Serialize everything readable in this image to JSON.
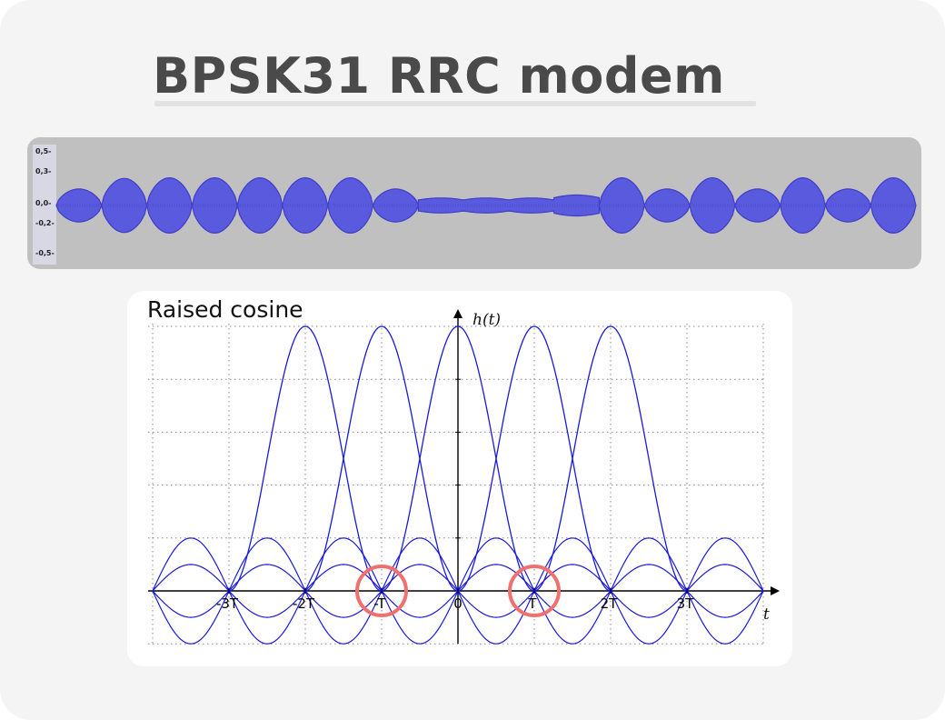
{
  "slide": {
    "title": "BPSK31 RRC modem"
  },
  "waveform": {
    "y_tick_labels": [
      "0,5-",
      "0,3-",
      "0,0-",
      "-0,2-",
      "-0,5-"
    ],
    "color": "#5a5ade",
    "envelope_heights": [
      0.55,
      0.9,
      0.92,
      0.92,
      0.92,
      0.92,
      0.92,
      0.55,
      0.25,
      0.25,
      0.25,
      0.35,
      0.92,
      0.55,
      0.92,
      0.55,
      0.92,
      0.55,
      0.92
    ]
  },
  "chart_data": {
    "type": "line",
    "title": "Raised cosine",
    "xlabel": "t",
    "ylabel": "h(t)",
    "x_ticks": [
      "-3T",
      "-2T",
      "-T",
      "0",
      "T",
      "2T",
      "3T"
    ],
    "xlim": [
      -4,
      4
    ],
    "ylim": [
      -0.25,
      1
    ],
    "grid": true,
    "series_color": "#1a1adc",
    "highlight_color": "#f07070",
    "highlights_at_x": [
      -1,
      1
    ],
    "pulse_centers": [
      -2,
      -1,
      0,
      1,
      2
    ],
    "pulse_peak": 1
  }
}
